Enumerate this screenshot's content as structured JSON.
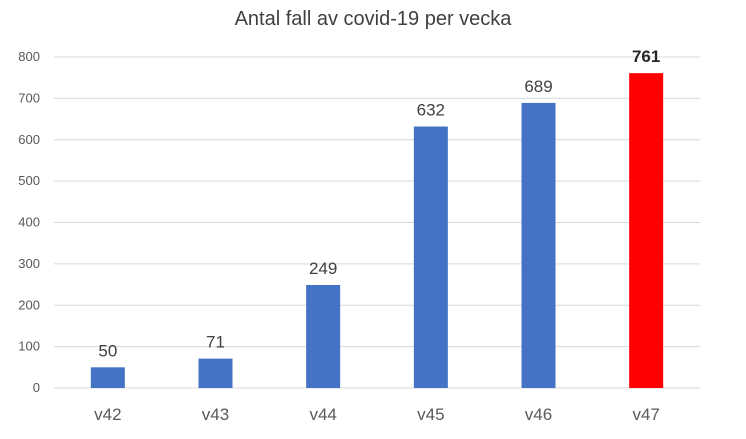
{
  "chart_data": {
    "type": "bar",
    "title": "Antal fall av covid-19 per vecka",
    "categories": [
      "v42",
      "v43",
      "v44",
      "v45",
      "v46",
      "v47"
    ],
    "values": [
      50,
      71,
      249,
      632,
      689,
      761
    ],
    "data_labels": [
      "50",
      "71",
      "249",
      "632",
      "689",
      "761"
    ],
    "highlight_index": 5,
    "ylim": [
      0,
      800
    ],
    "yticks": [
      0,
      100,
      200,
      300,
      400,
      500,
      600,
      700,
      800
    ],
    "grid": true,
    "legend": "none",
    "xlabel": "",
    "ylabel": "",
    "colors": {
      "bar": "#4472C4",
      "highlight": "#FF0000",
      "grid": "#D9D9D9",
      "axis_text": "#595959",
      "label_text": "#404040"
    }
  }
}
